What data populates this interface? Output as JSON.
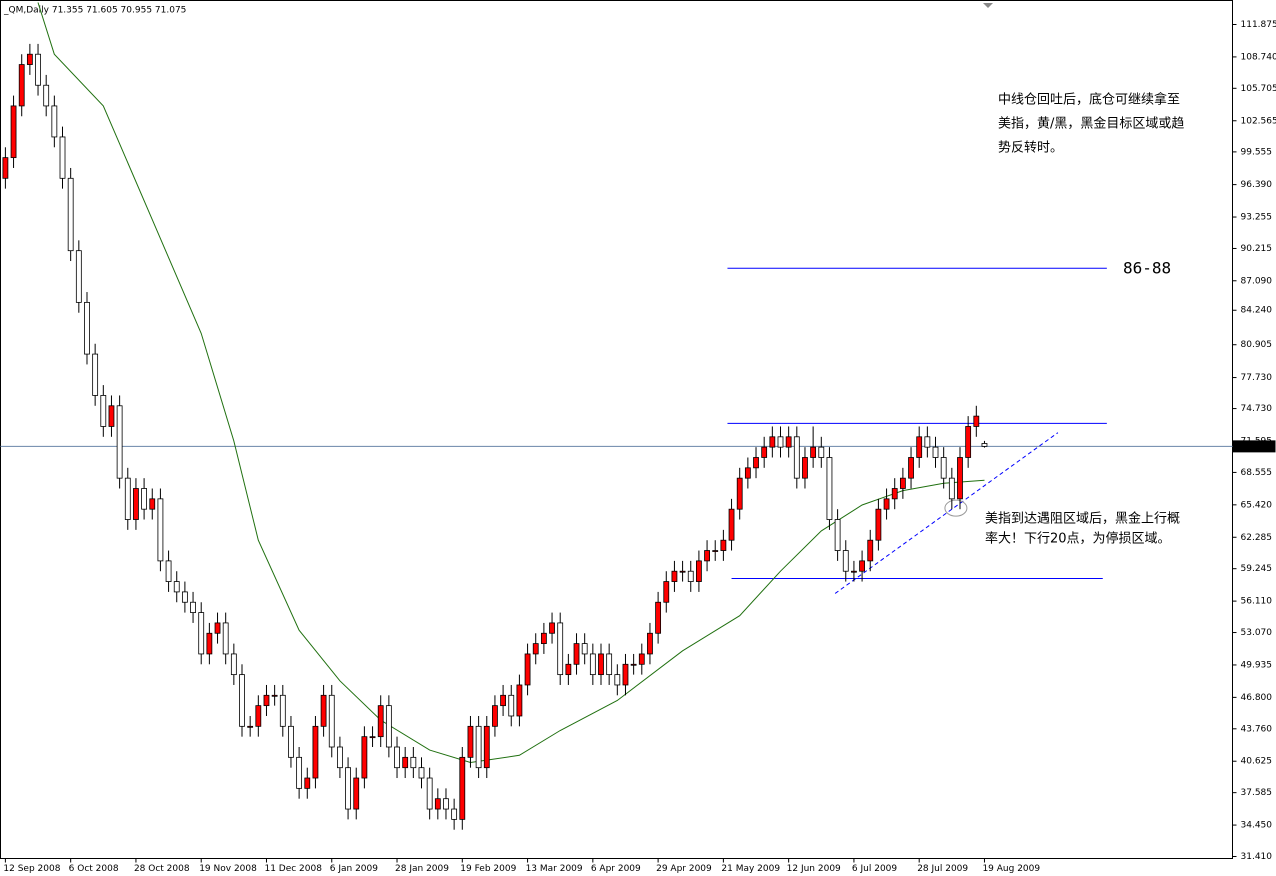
{
  "chart_data": {
    "type": "candlestick",
    "title": "_QM,Daily  71.355 71.605 70.955 71.075",
    "categories": [
      "12 Sep 2008",
      null,
      null,
      null,
      null,
      null,
      null,
      null,
      "6 Oct 2008",
      null,
      null,
      null,
      null,
      null,
      null,
      null,
      "28 Oct 2008",
      null,
      null,
      null,
      null,
      null,
      null,
      null,
      "19 Nov 2008",
      null,
      null,
      null,
      null,
      null,
      null,
      null,
      "11 Dec 2008",
      null,
      null,
      null,
      null,
      null,
      null,
      null,
      "6 Jan 2009",
      null,
      null,
      null,
      null,
      null,
      null,
      null,
      "28 Jan 2009",
      null,
      null,
      null,
      null,
      null,
      null,
      null,
      "19 Feb 2009",
      null,
      null,
      null,
      null,
      null,
      null,
      null,
      "13 Mar 2009",
      null,
      null,
      null,
      null,
      null,
      null,
      null,
      "6 Apr 2009",
      null,
      null,
      null,
      null,
      null,
      null,
      null,
      "29 Apr 2009",
      null,
      null,
      null,
      null,
      null,
      null,
      null,
      "21 May 2009",
      null,
      null,
      null,
      null,
      null,
      null,
      null,
      "12 Jun 2009",
      null,
      null,
      null,
      null,
      null,
      null,
      null,
      "6 Jul 2009",
      null,
      null,
      null,
      null,
      null,
      null,
      null,
      "28 Jul 2009",
      null,
      null,
      null,
      null,
      null,
      null,
      null,
      "19 Aug 2009"
    ],
    "open": [
      97,
      99,
      104,
      108,
      109,
      106,
      104,
      101,
      97,
      90,
      85,
      80,
      76,
      73,
      75,
      68,
      64,
      67,
      65,
      66,
      60,
      58,
      57,
      56,
      55,
      51,
      53,
      54,
      51,
      49,
      44,
      44,
      46,
      47,
      47,
      44,
      41,
      38,
      39,
      44,
      47,
      42,
      40,
      36,
      39,
      43,
      43,
      46,
      42,
      40,
      41,
      40,
      39,
      36,
      37,
      36,
      35,
      41,
      44,
      40,
      44,
      46,
      47,
      45,
      48,
      51,
      52,
      53,
      54,
      49,
      50,
      52,
      51,
      49,
      51,
      49,
      48,
      50,
      50,
      51,
      53,
      56,
      58,
      59,
      59,
      58,
      60,
      61,
      61,
      62,
      65,
      68,
      69,
      70,
      71,
      72,
      71,
      72,
      68,
      70,
      71,
      70,
      64,
      61,
      59,
      59,
      60,
      62,
      65,
      66,
      67,
      68,
      70,
      72,
      71,
      70,
      68,
      66,
      70,
      73,
      71.355
    ],
    "high": [
      100,
      105,
      109,
      110,
      110,
      107,
      105,
      102,
      98,
      91,
      86,
      81,
      77,
      76,
      76,
      69,
      68,
      68,
      67,
      67,
      61,
      59,
      58,
      57,
      56,
      54,
      55,
      55,
      52,
      50,
      45,
      47,
      48,
      48,
      48,
      45,
      42,
      40,
      45,
      48,
      48,
      43,
      41,
      40,
      44,
      44,
      47,
      47,
      43,
      42,
      42,
      41,
      40,
      38,
      38,
      37,
      42,
      45,
      45,
      45,
      47,
      48,
      48,
      49,
      52,
      53,
      54,
      55,
      55,
      51,
      53,
      53,
      52,
      52,
      52,
      50,
      51,
      51,
      52,
      54,
      57,
      59,
      60,
      60,
      60,
      61,
      62,
      62,
      63,
      66,
      69,
      70,
      71,
      72,
      73,
      73,
      73,
      73,
      71,
      73,
      72,
      71,
      65,
      62,
      60,
      61,
      63,
      66,
      67,
      68,
      69,
      71,
      73,
      73,
      72,
      71,
      69,
      71,
      74,
      75,
      71.605
    ],
    "low": [
      96,
      98,
      103,
      107,
      105,
      103,
      100,
      96,
      89,
      84,
      79,
      75,
      72,
      72,
      67,
      63,
      63,
      64,
      64,
      59,
      57,
      56,
      55,
      54,
      50,
      50,
      52,
      50,
      48,
      43,
      43,
      43,
      45,
      46,
      43,
      40,
      37,
      37,
      38,
      43,
      41,
      39,
      35,
      35,
      38,
      42,
      42,
      41,
      39,
      39,
      39,
      38,
      35,
      35,
      35,
      34,
      34,
      40,
      39,
      39,
      43,
      45,
      44,
      44,
      47,
      50,
      51,
      52,
      48,
      48,
      49,
      50,
      48,
      48,
      48,
      47,
      47,
      49,
      49,
      50,
      52,
      55,
      57,
      58,
      57,
      57,
      59,
      60,
      60,
      61,
      64,
      67,
      68,
      69,
      70,
      70,
      70,
      67,
      67,
      69,
      69,
      63,
      60,
      58,
      58,
      58,
      59,
      61,
      64,
      65,
      66,
      67,
      69,
      70,
      69,
      67,
      65,
      65,
      69,
      72,
      70.955
    ],
    "close": [
      99,
      104,
      108,
      109,
      106,
      104,
      101,
      97,
      90,
      85,
      80,
      76,
      73,
      75,
      68,
      64,
      67,
      65,
      66,
      60,
      58,
      57,
      56,
      55,
      51,
      53,
      54,
      51,
      49,
      44,
      44,
      46,
      47,
      47,
      44,
      41,
      38,
      39,
      44,
      47,
      42,
      40,
      36,
      39,
      43,
      43,
      46,
      42,
      40,
      41,
      40,
      39,
      36,
      37,
      36,
      35,
      41,
      44,
      40,
      44,
      46,
      47,
      45,
      48,
      51,
      52,
      53,
      54,
      49,
      50,
      52,
      51,
      49,
      51,
      49,
      48,
      50,
      50,
      51,
      53,
      56,
      58,
      59,
      59,
      58,
      60,
      61,
      61,
      62,
      65,
      68,
      69,
      70,
      71,
      72,
      71,
      72,
      68,
      70,
      71,
      70,
      64,
      61,
      59,
      59,
      60,
      62,
      65,
      66,
      67,
      68,
      70,
      72,
      71,
      70,
      68,
      66,
      70,
      73,
      74,
      71.075
    ],
    "up_color": "#ff0000",
    "down_color": "#ffffff",
    "wick_color": "#000000",
    "ma": {
      "color": "#207010",
      "x": [
        4,
        6,
        12,
        18,
        24,
        28,
        31,
        36,
        41,
        46,
        52,
        57,
        63,
        68,
        75,
        83,
        90,
        95,
        100,
        105,
        110,
        115,
        120
      ],
      "values": [
        114,
        109,
        104,
        93,
        82,
        71.6,
        62,
        53.3,
        48.4,
        44.6,
        41.7,
        40.5,
        41.2,
        43.6,
        46.5,
        51.3,
        54.7,
        59,
        62.9,
        65.4,
        66.8,
        67.5,
        67.8
      ]
    },
    "levels": [
      {
        "value": 88.3,
        "x": [
          88.5,
          135
        ]
      },
      {
        "value": 73.3,
        "x": [
          88.5,
          135
        ]
      },
      {
        "value": 58.3,
        "x": [
          89,
          134.5
        ]
      }
    ],
    "level_color": "#0000ff",
    "trendline": {
      "x": [
        101.7,
        129
      ],
      "values": [
        56.85,
        72.4
      ]
    },
    "marker": {
      "x": 116.5,
      "value": 65.1
    },
    "current_price_color": "#6a84a8",
    "xlim": [
      -0.6,
      150.4
    ],
    "ylim": [
      31.217,
      114.196
    ],
    "yticks": [
      111.875,
      {
        "value": 108.74,
        "label": "108.740"
      },
      105.705,
      102.565,
      99.555,
      {
        "value": 96.39,
        "label": "96.390"
      },
      93.255,
      90.215,
      {
        "value": 87.09,
        "label": "87.090"
      },
      {
        "value": 84.24,
        "label": "84.240"
      },
      80.905,
      {
        "value": 77.73,
        "label": "77.730"
      },
      {
        "value": 74.73,
        "label": "74.730"
      },
      71.595,
      68.555,
      {
        "value": 65.42,
        "label": "65.420"
      },
      62.285,
      59.245,
      {
        "value": 56.11,
        "label": "56.110"
      },
      {
        "value": 53.07,
        "label": "53.070"
      },
      49.935,
      {
        "value": 46.8,
        "label": "46.800"
      },
      {
        "value": 43.76,
        "label": "43.760"
      },
      40.625,
      37.585,
      {
        "value": 34.45,
        "label": "34.450"
      },
      {
        "value": 31.41,
        "label": "31.410"
      }
    ],
    "annotations": [
      {
        "lines": [
          "中线仓回吐后，底仓可继续拿至",
          "美指，黄/黑，黑金目标区域或趋",
          "势反转时。"
        ]
      },
      {
        "lines": [
          "86-88"
        ]
      },
      {
        "lines": [
          "美指到达遇阻区域后，黑金上行概",
          "率大！下行20点，为停损区域。"
        ]
      }
    ]
  }
}
